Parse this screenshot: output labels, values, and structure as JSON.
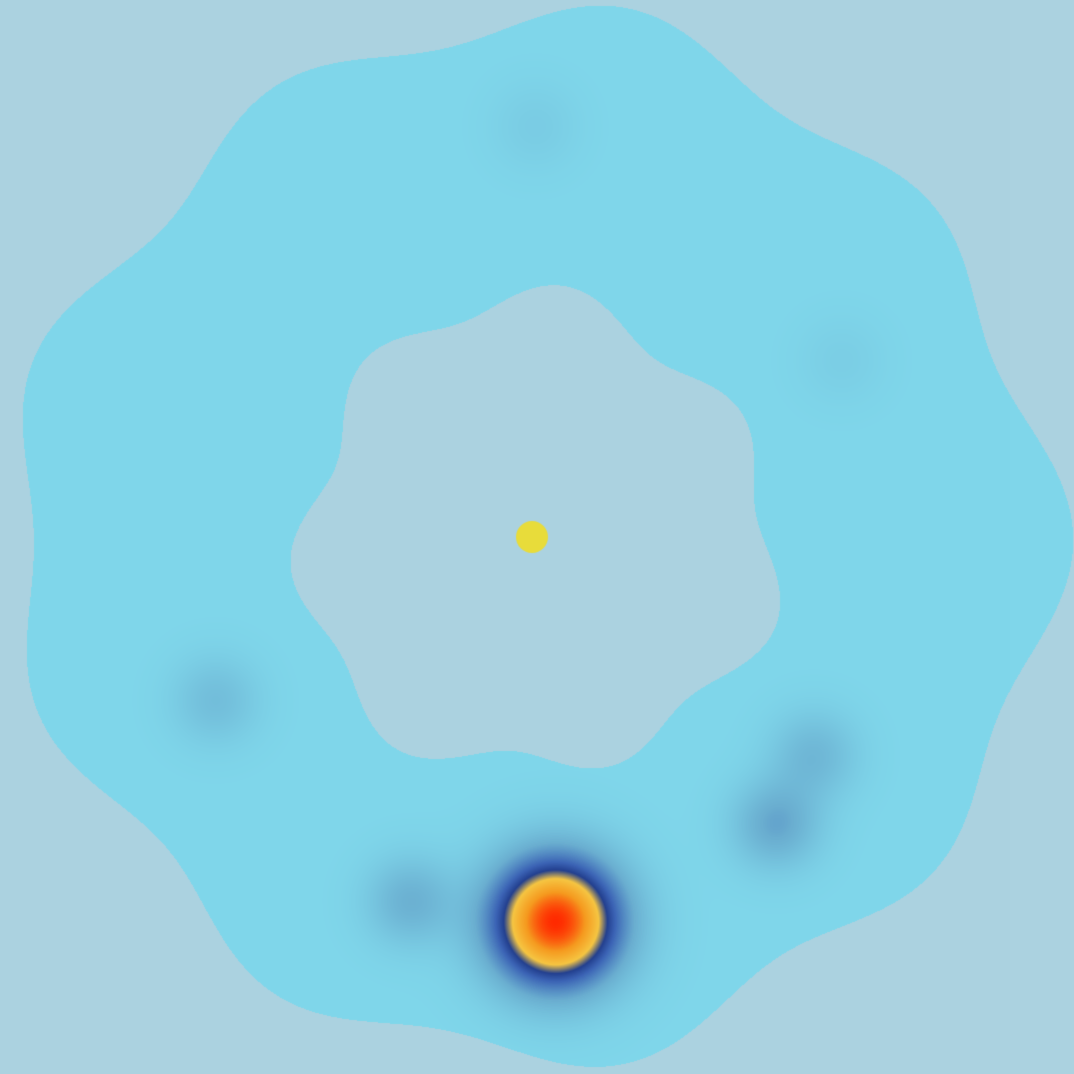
{
  "colors": {
    "background": "#abd2e0",
    "ring_base": "#7fd6ea",
    "center_marker": "#e8dc3a",
    "scale": [
      "#7fd6ea",
      "#6aaed0",
      "#3b63b5",
      "#23408f",
      "#f5c542",
      "#f59a1f",
      "#ff2a00"
    ]
  },
  "chart_data": {
    "type": "heatmap",
    "projection": "polar",
    "title": "",
    "xlabel": "",
    "ylabel": "",
    "grid": false,
    "legend": "none",
    "center_marker": true,
    "coverage_ring": {
      "inner_radius": 0.45,
      "outer_radius": 1.0
    },
    "hotspots": [
      {
        "azimuth_deg": 177,
        "radius": 0.74,
        "intensity": 1.0
      },
      {
        "azimuth_deg": 199,
        "radius": 0.74,
        "intensity": 0.18
      },
      {
        "azimuth_deg": 140,
        "radius": 0.72,
        "intensity": 0.22
      },
      {
        "azimuth_deg": 128,
        "radius": 0.68,
        "intensity": 0.15
      },
      {
        "azimuth_deg": 243,
        "radius": 0.69,
        "intensity": 0.12
      },
      {
        "azimuth_deg": 0,
        "radius": 0.79,
        "intensity": 0.05
      },
      {
        "azimuth_deg": 60,
        "radius": 0.68,
        "intensity": 0.04
      }
    ]
  }
}
